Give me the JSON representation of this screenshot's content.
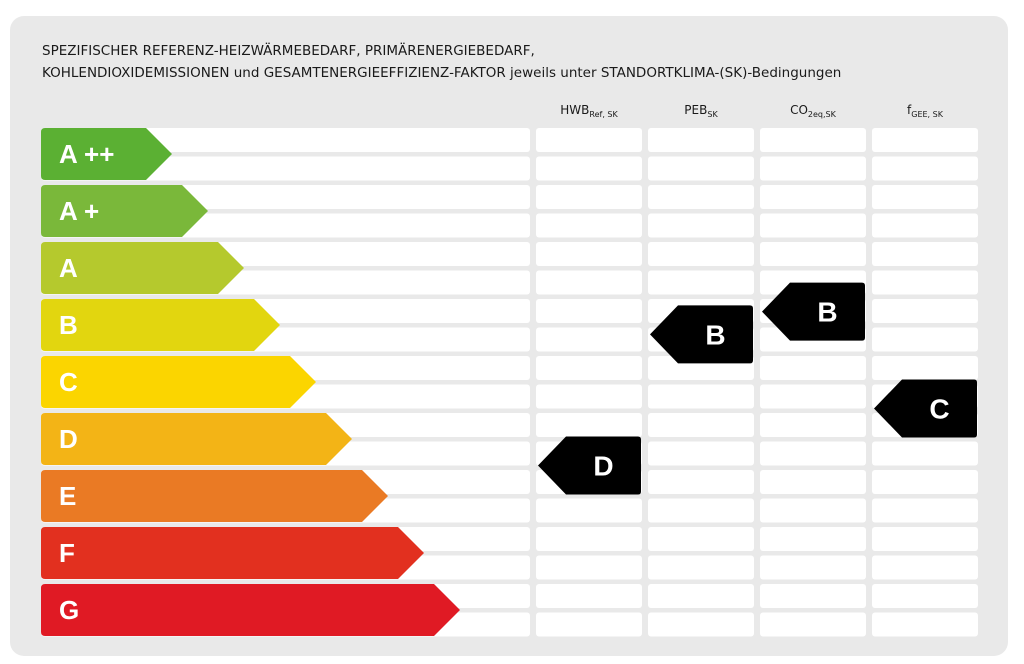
{
  "title_lines": [
    "SPEZIFISCHER REFERENZ-HEIZWÄRMEBEDARF, PRIMÄRENERGIEBEDARF,",
    "KOHLENDIOXIDEMISSIONEN und GESAMTENERGIEEFFIZIENZ-FAKTOR jeweils unter STANDORTKLIMA-(SK)-Bedingungen"
  ],
  "columns": [
    {
      "key": "hwb",
      "main": "HWB",
      "sub": "Ref, SK"
    },
    {
      "key": "peb",
      "main": "PEB",
      "sub": "SK"
    },
    {
      "key": "co2",
      "main": "CO",
      "sub": "2eq,SK"
    },
    {
      "key": "fgee",
      "main": "f",
      "sub": "GEE, SK"
    }
  ],
  "chart_data": {
    "type": "table",
    "classes": [
      {
        "label": "A ++",
        "color": "#5bb033"
      },
      {
        "label": "A +",
        "color": "#7ab83a"
      },
      {
        "label": "A",
        "color": "#b5c92d"
      },
      {
        "label": "B",
        "color": "#e2d60f"
      },
      {
        "label": "C",
        "color": "#fbd500"
      },
      {
        "label": "D",
        "color": "#f3b416"
      },
      {
        "label": "E",
        "color": "#ea7a24"
      },
      {
        "label": "F",
        "color": "#e2301f"
      },
      {
        "label": "G",
        "color": "#e01a24"
      }
    ],
    "ratings": [
      {
        "column": "HWB_Ref,SK",
        "class": "D",
        "position": 5.5
      },
      {
        "column": "PEB_SK",
        "class": "B",
        "position": 3.2
      },
      {
        "column": "CO2eq,SK",
        "class": "B",
        "position": 2.8
      },
      {
        "column": "f_GEE,SK",
        "class": "C",
        "position": 4.5
      }
    ],
    "marker_color": "#000000",
    "grid_cell_color": "#ffffff"
  }
}
